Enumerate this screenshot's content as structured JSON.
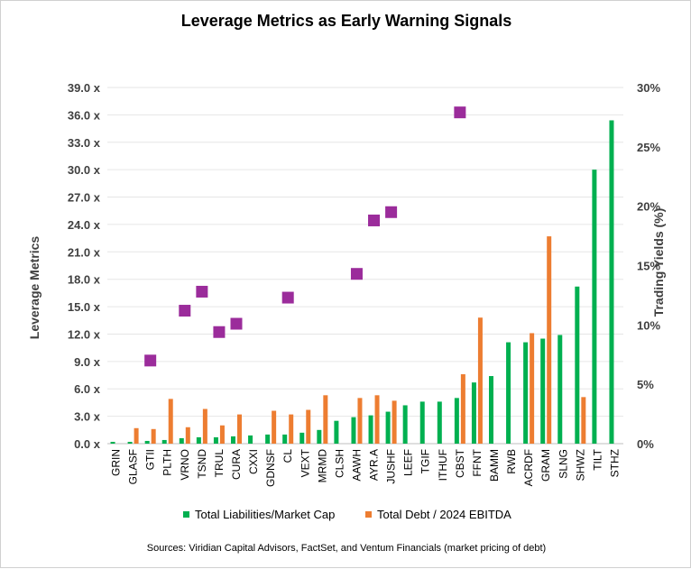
{
  "chart_data": {
    "type": "bar",
    "title": "Leverage Metrics as Early Warning Signals",
    "ylabel": "Leverage Metrics",
    "y2label": "Trading Yields (%)",
    "ylim": [
      0,
      39
    ],
    "y2lim": [
      0,
      30
    ],
    "yticks": [
      "0.0 x",
      "3.0 x",
      "6.0 x",
      "9.0 x",
      "12.0 x",
      "15.0 x",
      "18.0 x",
      "21.0 x",
      "24.0 x",
      "27.0 x",
      "30.0 x",
      "33.0 x",
      "36.0 x",
      "39.0 x"
    ],
    "y2ticks": [
      "0%",
      "5%",
      "10%",
      "15%",
      "20%",
      "25%",
      "30%"
    ],
    "categories": [
      "GRIN",
      "GLASF",
      "GTII",
      "PLTH",
      "VRNO",
      "TSND",
      "TRUL",
      "CURA",
      "CXXI",
      "GDNSF",
      "CL",
      "VEXT",
      "MRMD",
      "CLSH",
      "AAWH",
      "AYR.A",
      "JUSHF",
      "LEEF",
      "TGIF",
      "ITHUF",
      "CBST",
      "FFNT",
      "BAMM",
      "RWB",
      "ACRDF",
      "GRAM",
      "SLNG",
      "SHWZ",
      "TILT",
      "STHZ"
    ],
    "series": [
      {
        "name": "Total Liabilities/Market Cap",
        "color": "#00b050",
        "axis": "left",
        "values": [
          0.2,
          0.2,
          0.3,
          0.4,
          0.6,
          0.7,
          0.7,
          0.8,
          0.9,
          1.0,
          1.0,
          1.2,
          1.5,
          2.5,
          2.9,
          3.1,
          3.5,
          4.2,
          4.6,
          4.6,
          5.0,
          6.7,
          7.4,
          11.1,
          11.1,
          11.5,
          11.9,
          17.2,
          30.0,
          35.4
        ]
      },
      {
        "name": "Total Debt / 2024 EBITDA",
        "color": "#ed7d31",
        "axis": "left",
        "values": [
          null,
          1.7,
          1.6,
          4.9,
          1.8,
          3.8,
          2.0,
          3.2,
          null,
          3.6,
          3.2,
          3.7,
          5.3,
          null,
          5.0,
          5.3,
          4.7,
          null,
          null,
          null,
          7.6,
          13.8,
          null,
          null,
          12.1,
          22.7,
          null,
          5.1,
          null,
          null
        ]
      },
      {
        "name": "Trading Yield",
        "color": "#9b2c9b",
        "axis": "right",
        "marker": "square",
        "values": [
          null,
          null,
          7.0,
          null,
          11.2,
          12.8,
          9.4,
          10.1,
          null,
          null,
          12.3,
          null,
          null,
          null,
          14.3,
          18.8,
          19.5,
          null,
          null,
          null,
          27.9,
          null,
          null,
          null,
          null,
          null,
          null,
          null,
          null,
          null
        ]
      }
    ],
    "legend": [
      "Total Liabilities/Market Cap",
      "Total Debt / 2024 EBITDA"
    ],
    "legend_position": "bottom",
    "grid": "horizontal",
    "source": "Sources: Viridian Capital Advisors, FactSet, and Ventum Financials (market pricing of debt)"
  }
}
